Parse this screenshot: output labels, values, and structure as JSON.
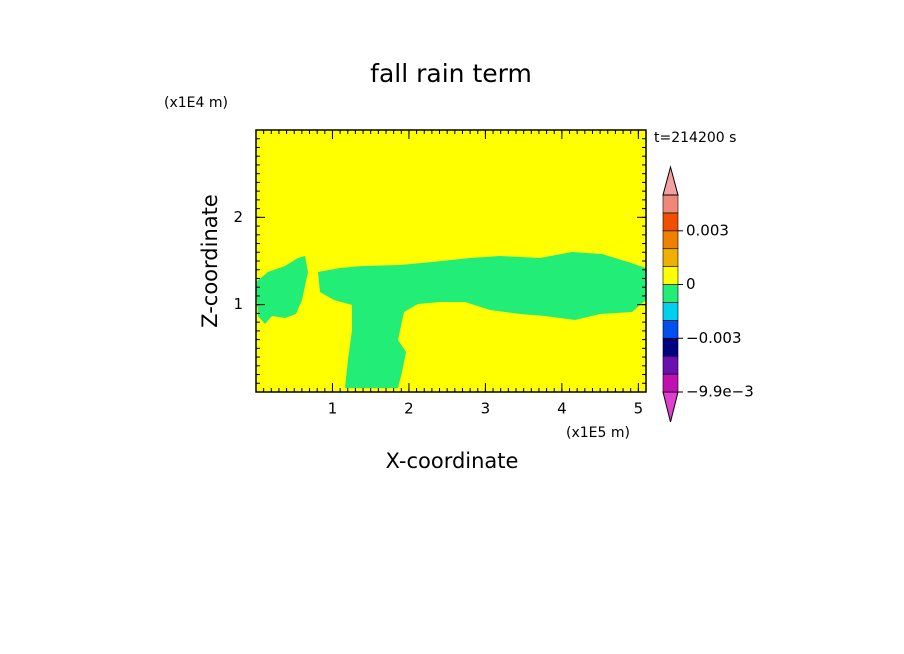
{
  "chart_data": {
    "type": "contour",
    "title": "fall rain term",
    "x_label": "X-coordinate",
    "y_label": "Z-coordinate",
    "x_unit": "(x1E5 m)",
    "y_unit": "(x1E4 m)",
    "time_label": "t=214200 s",
    "xlim": [
      0,
      5.1
    ],
    "ylim": [
      0,
      3
    ],
    "xticks": [
      1,
      2,
      3,
      4,
      5
    ],
    "yticks": [
      1,
      2
    ],
    "background_color": "#ffff00",
    "region_color": "#22ee77",
    "colorbar": {
      "levels": [
        -0.0099,
        -0.007,
        -0.004,
        -0.003,
        -0.002,
        -0.001,
        0,
        0.001,
        0.002,
        0.003,
        0.004,
        0.006
      ],
      "colors": [
        "#e040d0",
        "#c010b0",
        "#6a10b0",
        "#000080",
        "#0050f0",
        "#00d0f0",
        "#22ee77",
        "#ffff00",
        "#f0b000",
        "#f08000",
        "#f05000",
        "#f08878",
        "#f4a0a0"
      ],
      "ticks": [
        {
          "value": 0.003,
          "label": "0.003"
        },
        0,
        {
          "value": -0.003,
          "label": "−0.003"
        },
        {
          "value": -0.0099,
          "label": "−9.9e−3"
        }
      ]
    }
  }
}
